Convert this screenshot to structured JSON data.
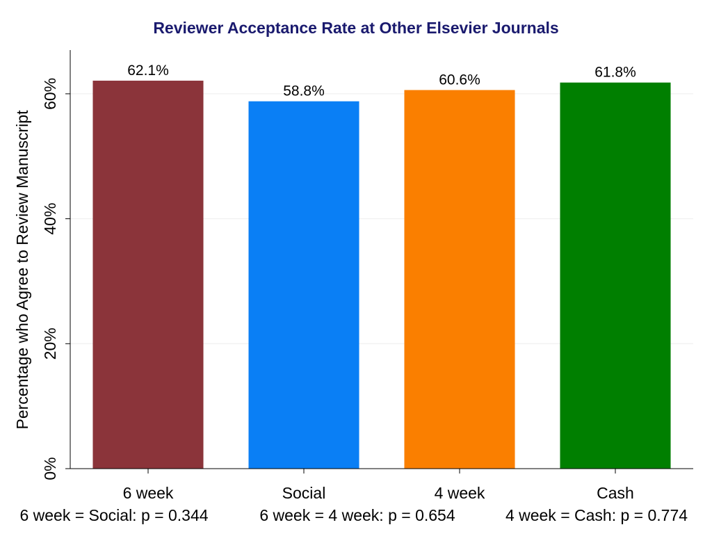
{
  "chart_data": {
    "type": "bar",
    "title": "Reviewer Acceptance Rate at Other Elsevier Journals",
    "xlabel": "",
    "ylabel": "Percentage who Agree to Review Manuscript",
    "ylim": [
      0,
      67
    ],
    "yticks": [
      0,
      20,
      40,
      60
    ],
    "ytick_labels": [
      "0%",
      "20%",
      "40%",
      "60%"
    ],
    "grid": true,
    "legend": "none",
    "categories": [
      "6 week",
      "Social",
      "4 week",
      "Cash"
    ],
    "values": [
      62.1,
      58.8,
      60.6,
      61.8
    ],
    "value_labels": [
      "62.1%",
      "58.8%",
      "60.6%",
      "61.8%"
    ],
    "colors": [
      "#8b343a",
      "#0a7ff5",
      "#fa7f00",
      "#007f00"
    ],
    "title_color": "#1a1a6e",
    "notes": [
      "6 week = Social: p = 0.344",
      "6 week = 4 week: p = 0.654",
      "4 week = Cash: p = 0.774"
    ]
  }
}
